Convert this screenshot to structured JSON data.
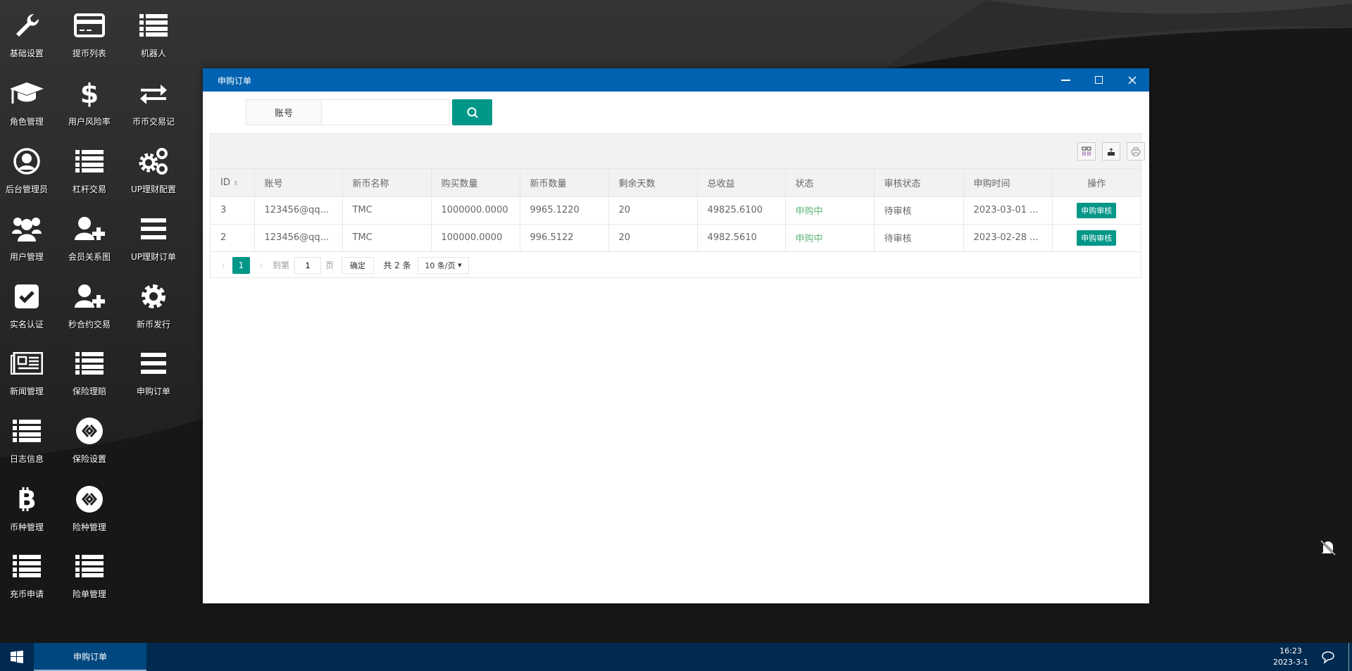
{
  "desktop": {
    "icons": [
      {
        "label": "基础设置",
        "icon": "wrench-icon"
      },
      {
        "label": "提币列表",
        "icon": "credit-card-icon"
      },
      {
        "label": "机器人",
        "icon": "list-icon"
      },
      {
        "label": "角色管理",
        "icon": "graduation-cap-icon"
      },
      {
        "label": "用户风险率",
        "icon": "dollar-icon"
      },
      {
        "label": "币币交易记",
        "icon": "exchange-icon"
      },
      {
        "label": "后台管理员",
        "icon": "user-circle-icon"
      },
      {
        "label": "杠杆交易",
        "icon": "list-icon"
      },
      {
        "label": "UP理财配置",
        "icon": "gears-icon"
      },
      {
        "label": "用户管理",
        "icon": "users-icon"
      },
      {
        "label": "会员关系图",
        "icon": "user-plus-icon"
      },
      {
        "label": "UP理财订单",
        "icon": "bars-icon"
      },
      {
        "label": "实名认证",
        "icon": "check-square-icon"
      },
      {
        "label": "秒合约交易",
        "icon": "user-plus-icon"
      },
      {
        "label": "新币发行",
        "icon": "gear-icon"
      },
      {
        "label": "新闻管理",
        "icon": "newspaper-icon"
      },
      {
        "label": "保险理赔",
        "icon": "list-icon"
      },
      {
        "label": "申购订单",
        "icon": "bars-icon"
      },
      {
        "label": "日志信息",
        "icon": "list-icon"
      },
      {
        "label": "保险设置",
        "icon": "link-circle-icon"
      },
      {
        "label": "币种管理",
        "icon": "bitcoin-icon"
      },
      {
        "label": "险种管理",
        "icon": "link-circle-icon"
      },
      {
        "label": "充币申请",
        "icon": "list-icon"
      },
      {
        "label": "险单管理",
        "icon": "list-icon"
      }
    ]
  },
  "window": {
    "title": "申购订单",
    "search": {
      "label": "账号",
      "value": "",
      "placeholder": ""
    },
    "toolbar": [
      "columns-icon",
      "export-icon",
      "print-icon"
    ],
    "columns": [
      "ID",
      "账号",
      "新币名称",
      "购买数量",
      "新币数量",
      "剩余天数",
      "总收益",
      "状态",
      "审核状态",
      "申购时间",
      "操作"
    ],
    "rows": [
      [
        "3",
        "123456@qq...",
        "TMC",
        "1000000.0000",
        "9965.1220",
        "20",
        "49825.6100",
        "申购中",
        "待审核",
        "2023-03-01 ...",
        "申购审核"
      ],
      [
        "2",
        "123456@qq...",
        "TMC",
        "100000.0000",
        "996.5122",
        "20",
        "4982.5610",
        "申购中",
        "待审核",
        "2023-02-28 ...",
        "申购审核"
      ]
    ],
    "pager": {
      "current": "1",
      "goto_label": "到第",
      "goto_value": "1",
      "page_label": "页",
      "confirm": "确定",
      "total": "共 2 条",
      "page_size": "10 条/页"
    }
  },
  "taskbar": {
    "tasks": [
      "申购订单"
    ],
    "time": "16:23",
    "date": "2023-3-1"
  },
  "colors": {
    "titlebar": "#0062b0",
    "primary": "#009688",
    "status_green": "#5fb878",
    "taskbar": "#002a4f"
  }
}
